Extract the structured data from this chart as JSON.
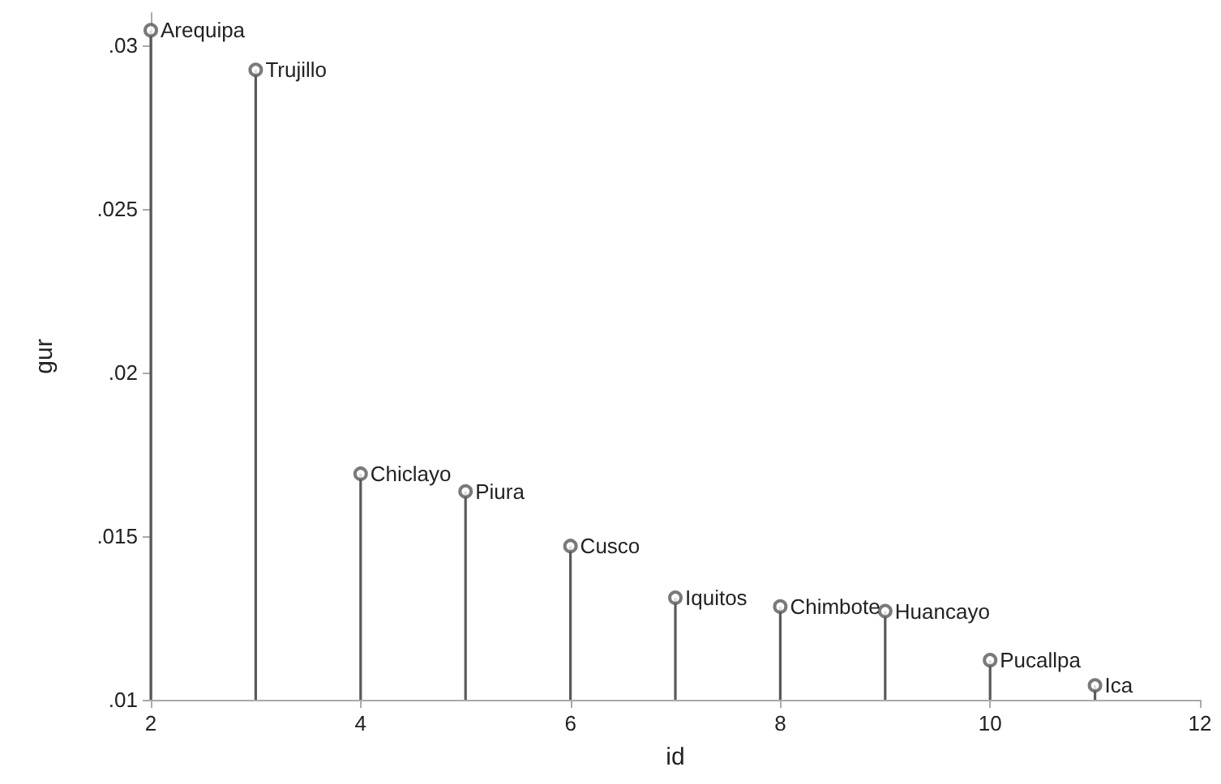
{
  "chart_data": {
    "type": "lollipop",
    "xlabel": "id",
    "ylabel": "gur",
    "x": [
      2,
      3,
      4,
      5,
      6,
      7,
      8,
      9,
      10,
      11
    ],
    "values": [
      0.03047,
      0.02926,
      0.01691,
      0.01637,
      0.0147,
      0.01312,
      0.01285,
      0.01271,
      0.01121,
      0.01044
    ],
    "color": "#595959",
    "marker": "circle",
    "grid": false,
    "xlim": [
      2,
      12
    ],
    "xticks": [
      2,
      4,
      6,
      8,
      10,
      12
    ],
    "ylim": [
      0.01,
      0.031
    ],
    "yticks": [
      {
        "value": 0.01,
        "label": ".01"
      },
      {
        "value": 0.015,
        "label": ".015"
      },
      {
        "value": 0.02,
        "label": ".02"
      },
      {
        "value": 0.025,
        "label": ".025"
      },
      {
        "value": 0.03,
        "label": ".03"
      }
    ],
    "annotations": [
      {
        "text": "Arequipa",
        "x": 2,
        "y": 0.03047
      },
      {
        "text": "Trujillo",
        "x": 3,
        "y": 0.02926
      },
      {
        "text": "Chiclayo",
        "x": 4,
        "y": 0.01691
      },
      {
        "text": "Piura",
        "x": 5,
        "y": 0.01637
      },
      {
        "text": "Cusco",
        "x": 6,
        "y": 0.0147
      },
      {
        "text": "Iquitos",
        "x": 7,
        "y": 0.01312
      },
      {
        "text": "Chimbote",
        "x": 8,
        "y": 0.01285
      },
      {
        "text": "Huancayo",
        "x": 9,
        "y": 0.01271
      },
      {
        "text": "Pucallpa",
        "x": 10,
        "y": 0.01121
      },
      {
        "text": "Ica",
        "x": 11,
        "y": 0.01044
      }
    ]
  }
}
